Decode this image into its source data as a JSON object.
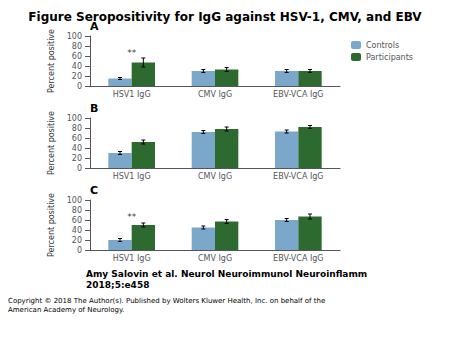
{
  "title": "Figure Seropositivity for IgG against HSV-1, CMV, and EBV",
  "annotations": [
    "Amy Salovin et al. Neurol Neuroimmunol Neuroinflamm\n2018;5:e458",
    "Copyright © 2018 The Author(s). Published by Wolters Kluwer Health, Inc. on behalf of the\nAmerican Academy of Neurology."
  ],
  "chart_data": [
    {
      "type": "bar",
      "title": "A",
      "categories": [
        "HSV1 IgG",
        "CMV IgG",
        "EBV-VCA IgG"
      ],
      "series": [
        {
          "name": "Controls",
          "color": "#7BA7CA",
          "values": [
            15,
            30,
            30
          ],
          "errors": [
            2,
            3,
            3
          ]
        },
        {
          "name": "Participants",
          "color": "#2D6A30",
          "values": [
            47,
            33,
            30
          ],
          "errors": [
            9,
            4,
            3
          ]
        }
      ],
      "ylabel": "Percent positive",
      "ylim": [
        0,
        100
      ],
      "yticks": [
        0,
        20,
        40,
        60,
        80,
        100
      ],
      "grid": false,
      "legend": "upper right",
      "annotations": [
        {
          "text": "**",
          "category": "HSV1 IgG",
          "y": 57
        }
      ]
    },
    {
      "type": "bar",
      "title": "B",
      "categories": [
        "HSV1 IgG",
        "CMV IgG",
        "EBV-VCA IgG"
      ],
      "series": [
        {
          "name": "Controls",
          "color": "#7BA7CA",
          "values": [
            30,
            72,
            73
          ],
          "errors": [
            3,
            3,
            3
          ]
        },
        {
          "name": "Participants",
          "color": "#2D6A30",
          "values": [
            52,
            78,
            82
          ],
          "errors": [
            4,
            4,
            3
          ]
        }
      ],
      "ylabel": "Percent positive",
      "ylim": [
        0,
        100
      ],
      "yticks": [
        0,
        20,
        40,
        60,
        80,
        100
      ],
      "grid": false
    },
    {
      "type": "bar",
      "title": "C",
      "categories": [
        "HSV1 IgG",
        "CMV IgG",
        "EBV-VCA IgG"
      ],
      "series": [
        {
          "name": "Controls",
          "color": "#7BA7CA",
          "values": [
            20,
            45,
            60
          ],
          "errors": [
            3,
            3,
            3
          ]
        },
        {
          "name": "Participants",
          "color": "#2D6A30",
          "values": [
            50,
            57,
            67
          ],
          "errors": [
            4,
            4,
            5
          ]
        }
      ],
      "ylabel": "Percent positive",
      "ylim": [
        0,
        100
      ],
      "yticks": [
        0,
        20,
        40,
        60,
        80,
        100
      ],
      "grid": false,
      "annotations": [
        {
          "text": "**",
          "category": "HSV1 IgG",
          "y": 58
        }
      ]
    }
  ]
}
